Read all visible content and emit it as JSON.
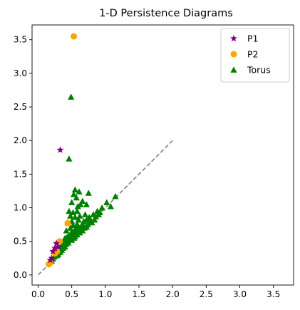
{
  "chart_data": {
    "type": "scatter",
    "title": "1-D Persistence Diagrams",
    "xlabel": "",
    "ylabel": "",
    "xlim": [
      -0.09,
      3.8
    ],
    "ylim": [
      -0.15,
      3.72
    ],
    "xticks": [
      0.0,
      0.5,
      1.0,
      1.5,
      2.0,
      2.5,
      3.0,
      3.5
    ],
    "yticks": [
      0.0,
      0.5,
      1.0,
      1.5,
      2.0,
      2.5,
      3.0,
      3.5
    ],
    "xtick_labels": [
      "0.0",
      "0.5",
      "1.0",
      "1.5",
      "2.0",
      "2.5",
      "3.0",
      "3.5"
    ],
    "ytick_labels": [
      "0.0",
      "0.5",
      "1.0",
      "1.5",
      "2.0",
      "2.5",
      "3.0",
      "3.5"
    ],
    "grid": false,
    "legend_position": "top-right",
    "diagonal": {
      "x": [
        0,
        2
      ],
      "y": [
        0,
        2
      ],
      "color": "#808080",
      "style": "dashed"
    },
    "series": [
      {
        "name": "P1",
        "marker": "star",
        "color": "#800080",
        "points": [
          [
            0.33,
            1.86
          ],
          [
            0.27,
            0.47
          ],
          [
            0.22,
            0.35
          ],
          [
            0.25,
            0.4
          ],
          [
            0.2,
            0.25
          ],
          [
            0.3,
            0.42
          ],
          [
            0.18,
            0.22
          ]
        ]
      },
      {
        "name": "P2",
        "marker": "circle",
        "color": "#FFA500",
        "points": [
          [
            0.53,
            3.55
          ],
          [
            0.44,
            0.77
          ],
          [
            0.32,
            0.5
          ],
          [
            0.16,
            0.16
          ],
          [
            0.18,
            0.18
          ],
          [
            0.28,
            0.35
          ],
          [
            0.25,
            0.32
          ]
        ]
      },
      {
        "name": "Torus",
        "marker": "triangle",
        "color": "#008000",
        "points": [
          [
            0.49,
            2.65
          ],
          [
            0.46,
            1.73
          ],
          [
            0.55,
            1.27
          ],
          [
            0.61,
            1.24
          ],
          [
            0.53,
            1.2
          ],
          [
            0.75,
            1.22
          ],
          [
            0.57,
            1.15
          ],
          [
            0.66,
            1.1
          ],
          [
            0.5,
            1.08
          ],
          [
            0.63,
            1.05
          ],
          [
            0.72,
            1.05
          ],
          [
            0.59,
            1.02
          ],
          [
            1.15,
            1.17
          ],
          [
            1.02,
            1.08
          ],
          [
            1.08,
            1.02
          ],
          [
            0.95,
            1.0
          ],
          [
            0.88,
            0.95
          ],
          [
            0.82,
            0.9
          ],
          [
            0.46,
            0.95
          ],
          [
            0.52,
            0.93
          ],
          [
            0.58,
            0.95
          ],
          [
            0.48,
            0.88
          ],
          [
            0.55,
            0.86
          ],
          [
            0.62,
            0.88
          ],
          [
            0.7,
            0.9
          ],
          [
            0.77,
            0.82
          ],
          [
            0.68,
            0.8
          ],
          [
            0.6,
            0.82
          ],
          [
            0.5,
            0.8
          ],
          [
            0.44,
            0.78
          ],
          [
            0.52,
            0.74
          ],
          [
            0.58,
            0.76
          ],
          [
            0.65,
            0.74
          ],
          [
            0.72,
            0.72
          ],
          [
            0.8,
            0.78
          ],
          [
            0.84,
            0.82
          ],
          [
            0.9,
            0.9
          ],
          [
            0.48,
            0.7
          ],
          [
            0.55,
            0.68
          ],
          [
            0.62,
            0.68
          ],
          [
            0.68,
            0.7
          ],
          [
            0.74,
            0.75
          ],
          [
            0.42,
            0.66
          ],
          [
            0.5,
            0.64
          ],
          [
            0.56,
            0.62
          ],
          [
            0.6,
            0.64
          ],
          [
            0.45,
            0.58
          ],
          [
            0.52,
            0.58
          ],
          [
            0.58,
            0.6
          ],
          [
            0.4,
            0.55
          ],
          [
            0.47,
            0.54
          ],
          [
            0.53,
            0.55
          ],
          [
            0.38,
            0.5
          ],
          [
            0.44,
            0.5
          ],
          [
            0.5,
            0.52
          ],
          [
            0.36,
            0.46
          ],
          [
            0.42,
            0.46
          ],
          [
            0.34,
            0.42
          ],
          [
            0.4,
            0.42
          ],
          [
            0.32,
            0.4
          ],
          [
            0.37,
            0.4
          ],
          [
            0.3,
            0.36
          ],
          [
            0.35,
            0.37
          ],
          [
            0.28,
            0.33
          ],
          [
            0.33,
            0.34
          ],
          [
            0.26,
            0.3
          ],
          [
            0.3,
            0.31
          ],
          [
            0.24,
            0.27
          ],
          [
            0.28,
            0.29
          ],
          [
            0.22,
            0.24
          ],
          [
            0.2,
            0.21
          ],
          [
            0.45,
            0.48
          ],
          [
            0.55,
            0.57
          ],
          [
            0.62,
            0.63
          ],
          [
            0.66,
            0.66
          ],
          [
            0.7,
            0.71
          ],
          [
            0.78,
            0.8
          ],
          [
            0.86,
            0.87
          ],
          [
            0.92,
            0.93
          ],
          [
            0.64,
            0.72
          ],
          [
            0.57,
            0.7
          ],
          [
            0.54,
            0.63
          ],
          [
            0.48,
            0.6
          ],
          [
            0.43,
            0.56
          ],
          [
            0.39,
            0.52
          ],
          [
            0.36,
            0.44
          ],
          [
            0.6,
            0.72
          ],
          [
            0.66,
            0.76
          ],
          [
            0.72,
            0.82
          ],
          [
            0.76,
            0.86
          ]
        ]
      }
    ]
  }
}
